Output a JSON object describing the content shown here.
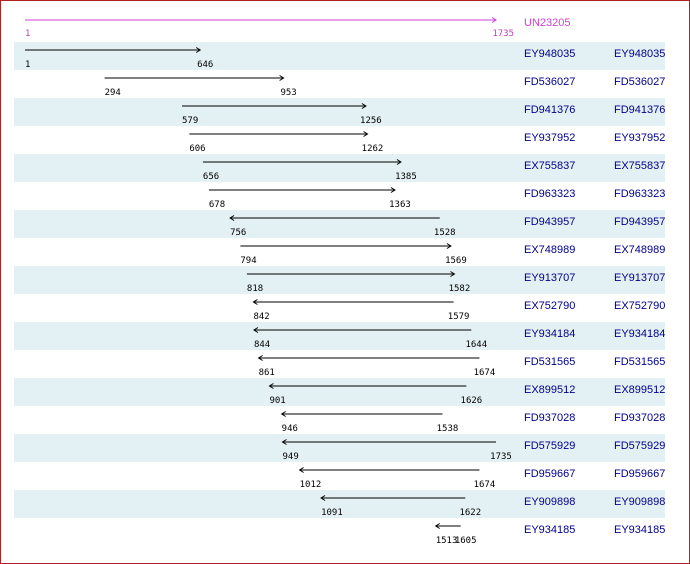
{
  "colors": {
    "row_band": "#e4f1f4",
    "frame": "#b22222",
    "reference": "#d040d0",
    "link": "#00008b",
    "arrow": "#000000"
  },
  "reference": {
    "id": "UN23205",
    "start": 1,
    "end": 1735
  },
  "alignments": [
    {
      "id": "EY948035",
      "alt_id": "EY948035",
      "start": 1,
      "end": 646,
      "strand": "+"
    },
    {
      "id": "FD536027",
      "alt_id": "FD536027",
      "start": 294,
      "end": 953,
      "strand": "+"
    },
    {
      "id": "FD941376",
      "alt_id": "FD941376",
      "start": 579,
      "end": 1256,
      "strand": "+"
    },
    {
      "id": "EY937952",
      "alt_id": "EY937952",
      "start": 606,
      "end": 1262,
      "strand": "+"
    },
    {
      "id": "EX755837",
      "alt_id": "EX755837",
      "start": 656,
      "end": 1385,
      "strand": "+"
    },
    {
      "id": "FD963323",
      "alt_id": "FD963323",
      "start": 678,
      "end": 1363,
      "strand": "+"
    },
    {
      "id": "FD943957",
      "alt_id": "FD943957",
      "start": 756,
      "end": 1528,
      "strand": "-"
    },
    {
      "id": "EX748989",
      "alt_id": "EX748989",
      "start": 794,
      "end": 1569,
      "strand": "+"
    },
    {
      "id": "EY913707",
      "alt_id": "EY913707",
      "start": 818,
      "end": 1582,
      "strand": "+"
    },
    {
      "id": "EX752790",
      "alt_id": "EX752790",
      "start": 842,
      "end": 1579,
      "strand": "-"
    },
    {
      "id": "EY934184",
      "alt_id": "EY934184",
      "start": 844,
      "end": 1644,
      "strand": "-"
    },
    {
      "id": "FD531565",
      "alt_id": "FD531565",
      "start": 861,
      "end": 1674,
      "strand": "-"
    },
    {
      "id": "EX899512",
      "alt_id": "EX899512",
      "start": 901,
      "end": 1626,
      "strand": "-"
    },
    {
      "id": "FD937028",
      "alt_id": "FD937028",
      "start": 946,
      "end": 1538,
      "strand": "-"
    },
    {
      "id": "FD575929",
      "alt_id": "FD575929",
      "start": 949,
      "end": 1735,
      "strand": "-"
    },
    {
      "id": "FD959667",
      "alt_id": "FD959667",
      "start": 1012,
      "end": 1674,
      "strand": "-"
    },
    {
      "id": "EY909898",
      "alt_id": "EY909898",
      "start": 1091,
      "end": 1622,
      "strand": "-"
    },
    {
      "id": "EY934185",
      "alt_id": "EY934185",
      "start": 1513,
      "end": 1605,
      "strand": "-"
    }
  ]
}
